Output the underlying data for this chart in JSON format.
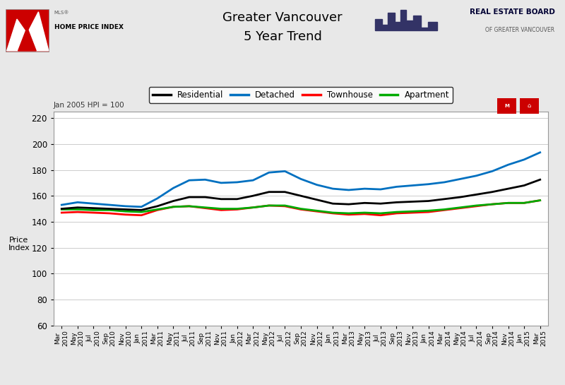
{
  "title_line1": "Greater Vancouver",
  "title_line2": "5 Year Trend",
  "ylabel": "Price\nIndex",
  "note": "Jan 2005 HPI = 100",
  "ylim": [
    60,
    225
  ],
  "yticks": [
    60,
    80,
    100,
    120,
    140,
    160,
    180,
    200,
    220
  ],
  "background_color": "#e8e8e8",
  "plot_bg_color": "#ffffff",
  "x_labels": [
    "Mar\n2010",
    "May\n2010",
    "Jul\n2010",
    "Sep\n2010",
    "Nov\n2010",
    "Jan\n2011",
    "Mar\n2011",
    "May\n2011",
    "Jul\n2011",
    "Sep\n2011",
    "Nov\n2011",
    "Jan\n2012",
    "Mar\n2012",
    "May\n2012",
    "Jul\n2012",
    "Sep\n2012",
    "Nov\n2012",
    "Jan\n2013",
    "Mar\n2013",
    "May\n2013",
    "Jul\n2013",
    "Sep\n2013",
    "Nov\n2013",
    "Jan\n2014",
    "Mar\n2014",
    "May\n2014",
    "Jul\n2014",
    "Sep\n2014",
    "Nov\n2014",
    "Jan\n2015",
    "Mar\n2015"
  ],
  "residential": [
    150.0,
    151.0,
    150.5,
    150.0,
    149.5,
    149.0,
    152.0,
    156.0,
    159.0,
    159.0,
    157.5,
    157.5,
    160.0,
    163.0,
    163.0,
    160.0,
    157.0,
    154.0,
    153.5,
    154.5,
    154.0,
    155.0,
    155.5,
    156.0,
    157.5,
    159.0,
    161.0,
    163.0,
    165.5,
    168.0,
    172.5
  ],
  "detached": [
    153.0,
    155.0,
    154.0,
    153.0,
    152.0,
    151.5,
    158.0,
    166.0,
    172.0,
    172.5,
    170.0,
    170.5,
    172.0,
    178.0,
    179.0,
    173.0,
    168.5,
    165.5,
    164.5,
    165.5,
    165.0,
    167.0,
    168.0,
    169.0,
    170.5,
    173.0,
    175.5,
    179.0,
    184.0,
    188.0,
    193.5
  ],
  "townhouse": [
    147.0,
    147.5,
    147.0,
    146.5,
    145.5,
    145.0,
    149.0,
    151.5,
    152.0,
    150.5,
    149.0,
    149.5,
    151.0,
    152.5,
    152.0,
    149.5,
    148.0,
    146.5,
    145.5,
    146.0,
    145.0,
    146.5,
    147.0,
    147.5,
    149.0,
    150.5,
    152.0,
    153.5,
    154.5,
    154.5,
    156.5
  ],
  "apartment": [
    149.5,
    149.5,
    149.0,
    149.0,
    148.0,
    147.5,
    149.5,
    151.5,
    152.0,
    151.0,
    150.0,
    150.0,
    151.0,
    152.5,
    152.5,
    150.0,
    148.5,
    147.0,
    146.5,
    147.0,
    146.5,
    147.5,
    148.0,
    148.5,
    149.5,
    151.0,
    152.5,
    153.5,
    154.5,
    154.5,
    156.5
  ],
  "residential_color": "#000000",
  "detached_color": "#0070c0",
  "townhouse_color": "#ff0000",
  "apartment_color": "#00aa00",
  "line_width": 2.0
}
